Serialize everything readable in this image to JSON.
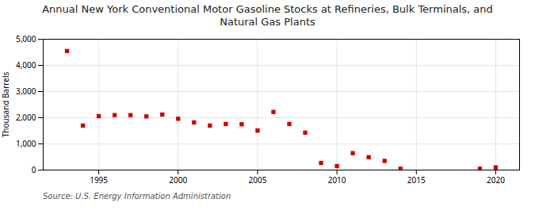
{
  "chart_data": {
    "type": "scatter",
    "title": "Annual New York Conventional Motor Gasoline Stocks at Refineries, Bulk Terminals, and\nNatural Gas Plants",
    "ylabel": "Thousand Barrels",
    "annotation": "Source: U.S. Energy Information Administration",
    "x": [
      1993,
      1994,
      1995,
      1996,
      1997,
      1998,
      1999,
      2000,
      2001,
      2002,
      2003,
      2004,
      2005,
      2006,
      2007,
      2008,
      2009,
      2010,
      2011,
      2012,
      2013,
      2014,
      2019,
      2020
    ],
    "values": [
      4550,
      1700,
      2060,
      2100,
      2100,
      2050,
      2120,
      1960,
      1820,
      1700,
      1760,
      1750,
      1510,
      2220,
      1760,
      1430,
      270,
      150,
      645,
      490,
      350,
      50,
      50,
      100
    ],
    "color": "#cc0000",
    "marker": "square",
    "xlim": [
      1991.5,
      2021.5
    ],
    "ylim": [
      0,
      5000
    ],
    "xticks": [
      1995,
      2000,
      2005,
      2010,
      2015,
      2020
    ],
    "yticks": [
      0,
      {
        "value": 1000,
        "label": "1,000"
      },
      {
        "value": 2000,
        "label": "2,000"
      },
      {
        "value": 3000,
        "label": "3,000"
      },
      {
        "value": 4000,
        "label": "4,000"
      },
      {
        "value": 5000,
        "label": "5,000"
      }
    ],
    "grid": true
  }
}
